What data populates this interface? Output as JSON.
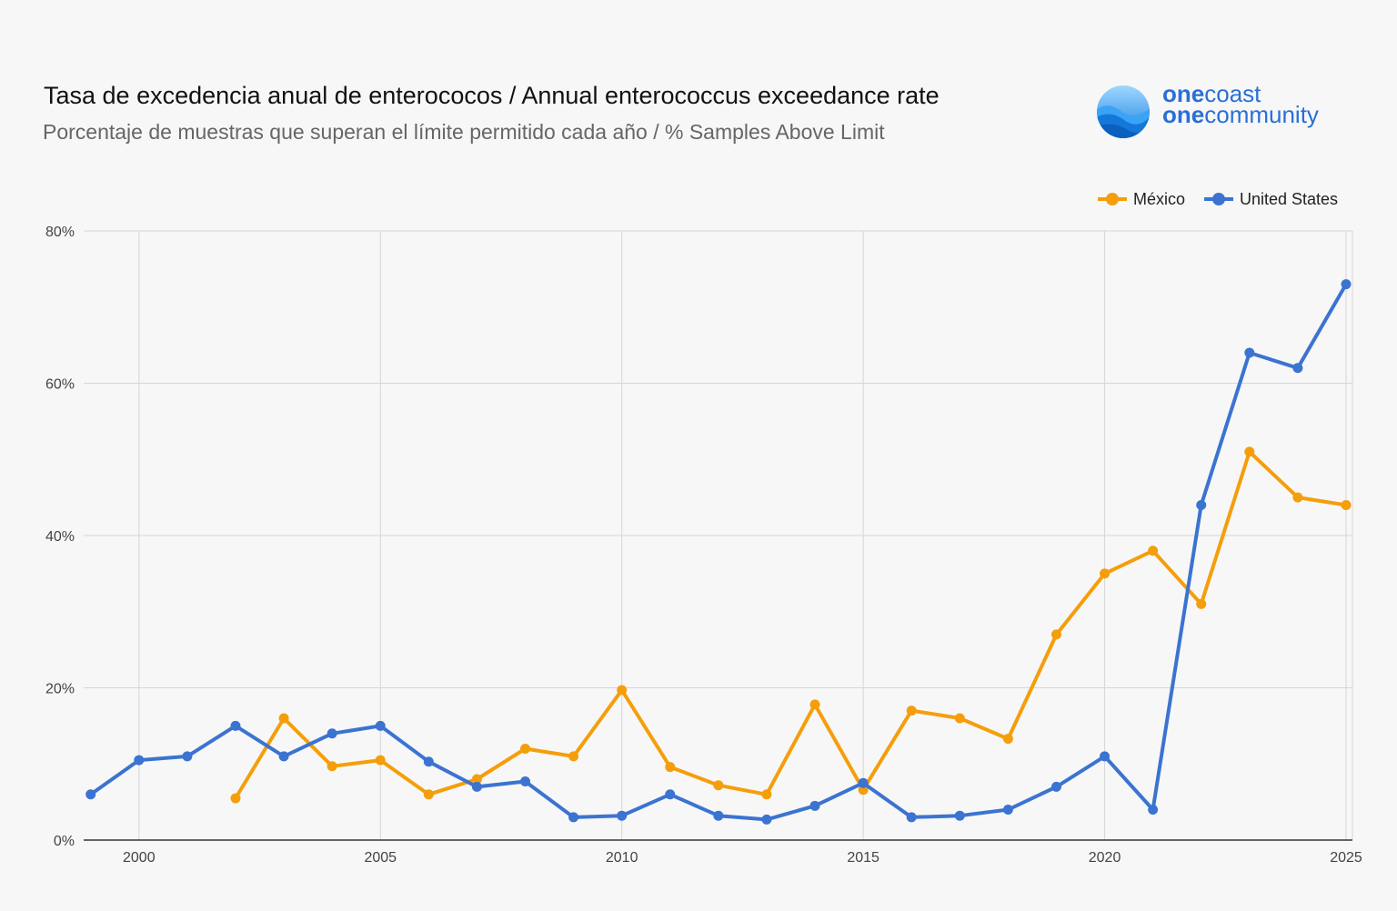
{
  "header": {
    "title": "Tasa de excedencia anual de enterococos / Annual enterococcus exceedance rate",
    "subtitle": "Porcentaje de muestras que superan el límite permitido cada año / % Samples Above Limit"
  },
  "logo": {
    "line1_bold": "one",
    "line1_rest": "coast",
    "line2_bold": "one",
    "line2_rest": "community",
    "icon": "wave-circle-icon"
  },
  "chart_data": {
    "type": "line",
    "title": "Tasa de excedencia anual de enterococos / Annual enterococcus exceedance rate",
    "subtitle": "Porcentaje de muestras que superan el límite permitido cada año / % Samples Above Limit",
    "xlabel": "",
    "ylabel": "",
    "xlim": [
      1999,
      2025
    ],
    "ylim": [
      0,
      80
    ],
    "x_ticks": [
      2000,
      2005,
      2010,
      2015,
      2020,
      2025
    ],
    "y_ticks": [
      "0%",
      "20%",
      "40%",
      "60%",
      "80%"
    ],
    "y_tick_values": [
      0,
      20,
      40,
      60,
      80
    ],
    "grid": true,
    "legend_position": "top-right",
    "x": [
      1999,
      2000,
      2001,
      2002,
      2003,
      2004,
      2005,
      2006,
      2007,
      2008,
      2009,
      2010,
      2011,
      2012,
      2013,
      2014,
      2015,
      2016,
      2017,
      2018,
      2019,
      2020,
      2021,
      2022,
      2023,
      2024,
      2025
    ],
    "series": [
      {
        "name": "México",
        "color": "#f59e0b",
        "values": [
          null,
          null,
          null,
          5.5,
          16,
          9.7,
          10.5,
          6,
          8,
          12,
          11,
          19.7,
          9.6,
          7.2,
          6,
          17.8,
          6.6,
          17,
          16,
          13.3,
          27,
          35,
          38,
          31,
          51,
          45,
          44
        ]
      },
      {
        "name": "United States",
        "color": "#3b73d1",
        "values": [
          6,
          10.5,
          11,
          15,
          11,
          14,
          15,
          10.3,
          7,
          7.7,
          3,
          3.2,
          6,
          3.2,
          2.7,
          4.5,
          7.5,
          3,
          3.2,
          4,
          7,
          11,
          4,
          44,
          64,
          62,
          73
        ]
      }
    ]
  }
}
